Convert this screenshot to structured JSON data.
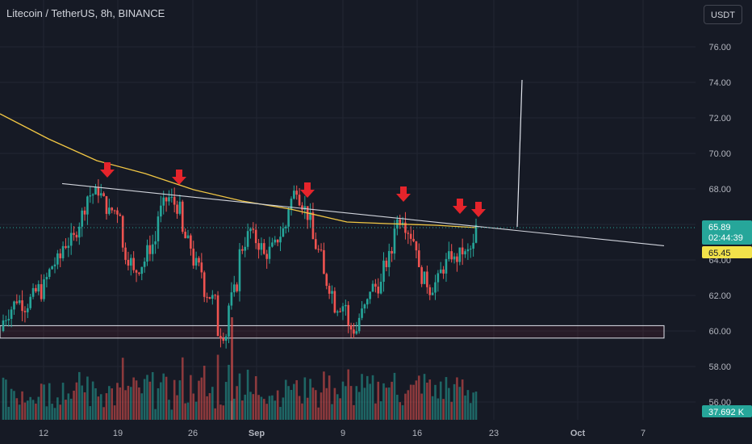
{
  "header": {
    "title": "Litecoin / TetherUS, 8h, BINANCE",
    "currency": "USDT"
  },
  "price_tags": {
    "last_price": "65.89",
    "countdown": "02:44:39",
    "ma_value": "65.45",
    "volume": "37.692 K"
  },
  "colors": {
    "background": "#161a25",
    "up": "#26a69a",
    "down": "#ef5350",
    "ma_line": "#f2c744",
    "trendline": "#d1d4dc",
    "arrow": "#e5242b",
    "axis_highlight": "#1e3a5f"
  },
  "chart_data": {
    "type": "candlestick",
    "symbol": "Litecoin / TetherUS",
    "interval": "8h",
    "exchange": "BINANCE",
    "y_axis": {
      "ticks": [
        "56.00",
        "58.00",
        "60.00",
        "62.00",
        "64.00",
        "66.00",
        "68.00",
        "70.00",
        "72.00",
        "74.00",
        "76.00"
      ],
      "range": [
        55.2,
        78.0
      ]
    },
    "x_axis": {
      "ticks": [
        "12",
        "19",
        "26",
        "Sep",
        "9",
        "16",
        "23",
        "Oct",
        "7"
      ]
    },
    "price_path": [
      [
        60.0,
        60.6
      ],
      [
        61.6,
        61.9
      ],
      [
        61.3,
        61.5
      ],
      [
        62.4,
        61.8
      ],
      [
        63.5,
        63.6
      ],
      [
        64.2,
        64.8
      ],
      [
        65.2,
        65.3
      ],
      [
        67.2,
        67.6
      ],
      [
        67.8,
        68.0
      ],
      [
        66.6,
        66.8
      ],
      [
        66.8,
        64.7
      ],
      [
        63.7,
        63.2
      ],
      [
        64.0,
        64.3
      ],
      [
        65.2,
        66.4
      ],
      [
        67.6,
        67.5
      ],
      [
        66.8,
        65.6
      ],
      [
        64.6,
        64.0
      ],
      [
        63.2,
        62.3
      ],
      [
        61.6,
        60.0
      ],
      [
        59.8,
        61.3
      ],
      [
        63.0,
        64.4
      ],
      [
        65.8,
        65.4
      ],
      [
        64.6,
        64.2
      ],
      [
        64.8,
        65.0
      ],
      [
        66.0,
        66.8
      ],
      [
        68.4,
        67.6
      ],
      [
        66.2,
        65.4
      ],
      [
        64.0,
        63.2
      ],
      [
        62.0,
        61.4
      ],
      [
        61.5,
        60.2
      ],
      [
        60.0,
        60.6
      ],
      [
        61.8,
        62.4
      ],
      [
        62.6,
        63.3
      ],
      [
        64.6,
        66.0
      ],
      [
        66.6,
        66.0
      ],
      [
        64.8,
        63.4
      ],
      [
        62.6,
        62.3
      ],
      [
        63.0,
        63.3
      ],
      [
        64.4,
        63.8
      ],
      [
        64.6,
        64.2
      ],
      [
        64.9,
        65.8
      ]
    ],
    "volume_bars": "relative volume per candle, no printed values",
    "moving_average": {
      "value": "65.45"
    },
    "horizontal_zone": {
      "low": 59.6,
      "high": 60.3
    },
    "trendline": {
      "from": 68.3,
      "to": 64.8
    },
    "annotations": "red down-arrows marking rejections at descending trendline; vertical white line projecting to 74.00",
    "last_price": 65.89
  }
}
